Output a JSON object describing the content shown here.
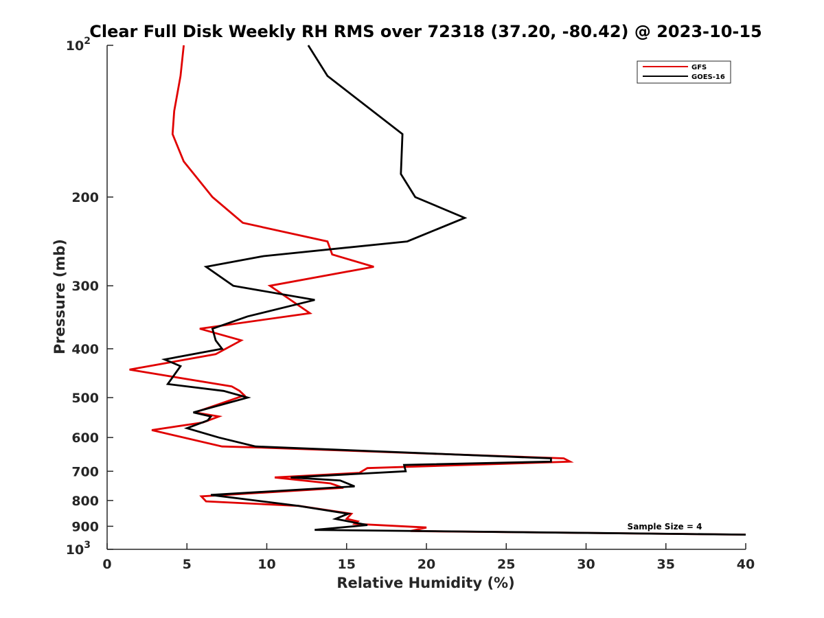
{
  "chart_data": {
    "type": "line",
    "title": "Clear Full Disk Weekly RH RMS over 72318 (37.20, -80.42) @ 2023-10-15",
    "xlabel": "Relative Humidity (%)",
    "ylabel": "Pressure (mb)",
    "xlim": [
      0,
      40
    ],
    "ylim": [
      100,
      1000
    ],
    "yscale": "log",
    "yreversed": true,
    "grid": false,
    "legend_position": "top-right",
    "x_ticks": [
      "0",
      "5",
      "10",
      "15",
      "20",
      "25",
      "30",
      "35",
      "40"
    ],
    "y_ticks": [
      {
        "value": 100,
        "base": "10",
        "exp": "2"
      },
      {
        "value": 200,
        "label": "200"
      },
      {
        "value": 300,
        "label": "300"
      },
      {
        "value": 400,
        "label": "400"
      },
      {
        "value": 500,
        "label": "500"
      },
      {
        "value": 600,
        "label": "600"
      },
      {
        "value": 700,
        "label": "700"
      },
      {
        "value": 800,
        "label": "800"
      },
      {
        "value": 900,
        "label": "900"
      },
      {
        "value": 1000,
        "base": "10",
        "exp": "3"
      }
    ],
    "annotation": "Sample Size = 4",
    "series": [
      {
        "name": "GFS",
        "color": "#e00000",
        "points": [
          [
            4.8,
            100
          ],
          [
            4.6,
            115
          ],
          [
            4.2,
            135
          ],
          [
            4.1,
            150
          ],
          [
            4.8,
            170
          ],
          [
            6.6,
            200
          ],
          [
            8.5,
            225
          ],
          [
            13.8,
            245
          ],
          [
            14.1,
            260
          ],
          [
            16.7,
            275
          ],
          [
            10.2,
            300
          ],
          [
            12.7,
            340
          ],
          [
            5.8,
            365
          ],
          [
            8.4,
            385
          ],
          [
            6.8,
            410
          ],
          [
            1.4,
            440
          ],
          [
            7.8,
            475
          ],
          [
            8.3,
            485
          ],
          [
            8.6,
            495
          ],
          [
            5.5,
            535
          ],
          [
            7.0,
            545
          ],
          [
            6.0,
            560
          ],
          [
            2.8,
            580
          ],
          [
            7.2,
            625
          ],
          [
            9.5,
            628
          ],
          [
            28.6,
            660
          ],
          [
            29.0,
            670
          ],
          [
            16.3,
            690
          ],
          [
            15.8,
            705
          ],
          [
            10.5,
            720
          ],
          [
            14.0,
            740
          ],
          [
            14.8,
            755
          ],
          [
            5.9,
            785
          ],
          [
            6.2,
            803
          ],
          [
            12.0,
            820
          ],
          [
            15.3,
            850
          ],
          [
            15.0,
            870
          ],
          [
            15.7,
            880
          ],
          [
            15.5,
            890
          ],
          [
            20.0,
            905
          ],
          [
            19.0,
            920
          ],
          [
            40.0,
            935
          ]
        ]
      },
      {
        "name": "GOES-16",
        "color": "#000000",
        "points": [
          [
            12.6,
            100
          ],
          [
            13.8,
            115
          ],
          [
            18.5,
            150
          ],
          [
            18.4,
            180
          ],
          [
            19.3,
            200
          ],
          [
            22.4,
            220
          ],
          [
            18.8,
            245
          ],
          [
            9.8,
            262
          ],
          [
            6.2,
            275
          ],
          [
            7.9,
            300
          ],
          [
            13.0,
            320
          ],
          [
            8.8,
            345
          ],
          [
            6.6,
            365
          ],
          [
            6.8,
            385
          ],
          [
            7.2,
            400
          ],
          [
            3.6,
            420
          ],
          [
            4.6,
            433
          ],
          [
            3.8,
            470
          ],
          [
            7.3,
            485
          ],
          [
            8.8,
            500
          ],
          [
            5.4,
            535
          ],
          [
            6.5,
            545
          ],
          [
            6.3,
            555
          ],
          [
            5.0,
            575
          ],
          [
            7.0,
            600
          ],
          [
            9.3,
            625
          ],
          [
            27.8,
            660
          ],
          [
            27.8,
            670
          ],
          [
            18.6,
            680
          ],
          [
            18.7,
            700
          ],
          [
            11.5,
            720
          ],
          [
            14.6,
            730
          ],
          [
            15.5,
            750
          ],
          [
            6.5,
            780
          ],
          [
            12.0,
            820
          ],
          [
            15.1,
            850
          ],
          [
            14.3,
            870
          ],
          [
            16.3,
            895
          ],
          [
            13.0,
            915
          ],
          [
            40.0,
            935
          ]
        ]
      }
    ]
  }
}
